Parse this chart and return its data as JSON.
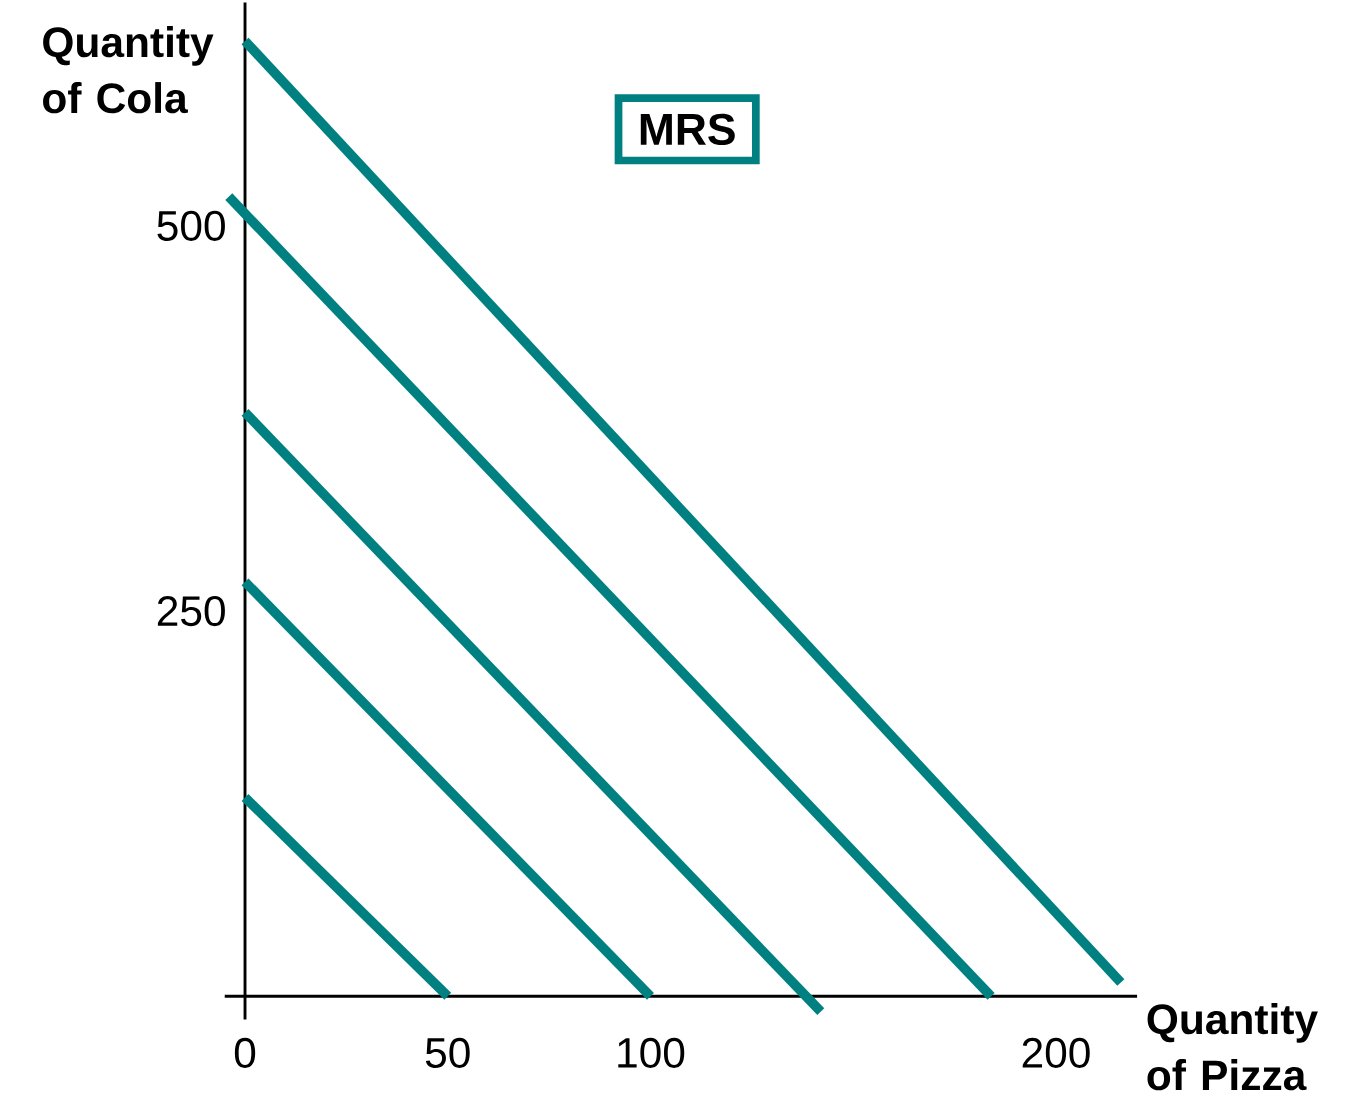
{
  "chart_data": {
    "type": "line",
    "xlabel": "Quantity of Pizza",
    "ylabel": "Quantity of Cola",
    "annotations": [
      "MRS"
    ],
    "series": [
      {
        "color": "#008080",
        "x": [
          0,
          50
        ],
        "values": [
          129,
          0
        ]
      },
      {
        "color": "#008080",
        "x": [
          0,
          100
        ],
        "values": [
          269,
          0
        ]
      },
      {
        "color": "#008080",
        "x": [
          0,
          142
        ],
        "values": [
          379,
          -10
        ]
      },
      {
        "color": "#008080",
        "x": [
          -4,
          184
        ],
        "values": [
          519,
          0
        ]
      },
      {
        "color": "#008080",
        "x": [
          0,
          216
        ],
        "values": [
          620,
          9
        ]
      }
    ],
    "xlim": [
      -5,
      220
    ],
    "ylim": [
      -15,
      645
    ],
    "xticks": [
      0,
      50,
      100,
      200
    ],
    "yticks": [
      250,
      500
    ],
    "grid": false,
    "marker": "none",
    "line_style": "solid"
  }
}
